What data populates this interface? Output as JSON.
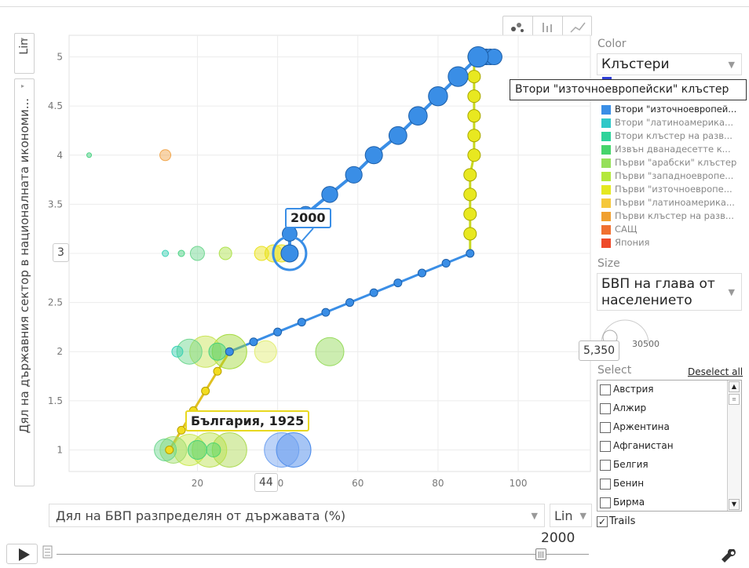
{
  "chart_data": {
    "type": "scatter",
    "x_axis": {
      "label": "Дял на БВП разпределян от държавата (%)",
      "scale": "Lin",
      "range": [
        -12,
        118
      ],
      "ticks": [
        20,
        40,
        60,
        80,
        100
      ],
      "highlight_value": "44"
    },
    "y_axis": {
      "label": "Дял на държавния сектор в националната икономи...",
      "scale": "Lin",
      "range": [
        0.78,
        5.22
      ],
      "ticks": [
        1,
        1.5,
        2,
        2.5,
        3,
        3.5,
        4,
        4.5,
        5
      ],
      "tick_labels": [
        "1",
        "1.5",
        "2",
        "2.5",
        "3",
        "3.5",
        "4",
        "4.5",
        "5"
      ],
      "highlight_value": "3"
    },
    "grid": true,
    "year": "2000",
    "series": [
      {
        "name": "Втори \"източноевропейски\" клъстер",
        "color": "#2f8ee5",
        "trail": [
          [
            28,
            2
          ],
          [
            34,
            2.1
          ],
          [
            40,
            2.2
          ],
          [
            46,
            2.3
          ],
          [
            52,
            2.4
          ],
          [
            58,
            2.5
          ],
          [
            64,
            2.6
          ],
          [
            70,
            2.7
          ],
          [
            76,
            2.8
          ],
          [
            82,
            2.9
          ],
          [
            88,
            3
          ],
          [
            88,
            3.2
          ],
          [
            88,
            3.4
          ],
          [
            88,
            3.6
          ],
          [
            88,
            3.8
          ],
          [
            89,
            4
          ],
          [
            89,
            4.2
          ],
          [
            89,
            4.4
          ],
          [
            89,
            4.6
          ],
          [
            89,
            4.8
          ],
          [
            89,
            5
          ],
          [
            91,
            5
          ],
          [
            92,
            5
          ],
          [
            93,
            5
          ],
          [
            94,
            5
          ]
        ],
        "trail2": [
          [
            43,
            3
          ],
          [
            43,
            3.2
          ],
          [
            47,
            3.4
          ],
          [
            53,
            3.6
          ],
          [
            59,
            3.8
          ],
          [
            64,
            4
          ],
          [
            70,
            4.2
          ],
          [
            75,
            4.4
          ],
          [
            80,
            4.6
          ],
          [
            85,
            4.8
          ],
          [
            90,
            5
          ]
        ],
        "current": [
          43,
          3
        ]
      },
      {
        "name": "Първи \"източноевропейски\" клъстер",
        "color": "#d8e020",
        "trail": [
          [
            13,
            1
          ],
          [
            16,
            1.2
          ],
          [
            19,
            1.4
          ],
          [
            22,
            1.6
          ],
          [
            25,
            1.8
          ],
          [
            28,
            2
          ]
        ]
      }
    ],
    "bubbles": [
      {
        "x": 44,
        "y": 1,
        "r": 22,
        "color": "#3a7fe8"
      },
      {
        "x": 41,
        "y": 1,
        "r": 22,
        "color": "#6a9ef0"
      },
      {
        "x": 28,
        "y": 1,
        "r": 22,
        "color": "#a8d84a"
      },
      {
        "x": 23,
        "y": 1,
        "r": 22,
        "color": "#b8e046"
      },
      {
        "x": 18,
        "y": 1,
        "r": 20,
        "color": "#c8e848"
      },
      {
        "x": 14,
        "y": 1,
        "r": 17,
        "color": "#9edc6a"
      },
      {
        "x": 12,
        "y": 1,
        "r": 14,
        "color": "#66d48a"
      },
      {
        "x": 20,
        "y": 1,
        "r": 12,
        "color": "#3ccf7a"
      },
      {
        "x": 24,
        "y": 1,
        "r": 9,
        "color": "#46d46a"
      },
      {
        "x": 28,
        "y": 2,
        "r": 22,
        "color": "#9ed832"
      },
      {
        "x": 22,
        "y": 2,
        "r": 20,
        "color": "#c6e24c"
      },
      {
        "x": 18,
        "y": 2,
        "r": 16,
        "color": "#66d48a"
      },
      {
        "x": 37,
        "y": 2,
        "r": 14,
        "color": "#e0ec6a"
      },
      {
        "x": 53,
        "y": 2,
        "r": 18,
        "color": "#8ed850"
      },
      {
        "x": 25,
        "y": 2,
        "r": 11,
        "color": "#3ccf7a"
      },
      {
        "x": 15,
        "y": 2,
        "r": 7,
        "color": "#2ecfb0"
      },
      {
        "x": 12,
        "y": 4,
        "r": 7,
        "color": "#f0a040"
      },
      {
        "x": -7,
        "y": 4,
        "r": 3,
        "color": "#3ccf7a"
      },
      {
        "x": 12,
        "y": 3,
        "r": 4,
        "color": "#2ecfb0"
      },
      {
        "x": 16,
        "y": 3,
        "r": 4,
        "color": "#3ccf7a"
      },
      {
        "x": 20,
        "y": 3,
        "r": 9,
        "color": "#66d48a"
      },
      {
        "x": 27,
        "y": 3,
        "r": 8,
        "color": "#a8e040"
      },
      {
        "x": 36,
        "y": 3,
        "r": 9,
        "color": "#e8e010"
      },
      {
        "x": 39,
        "y": 3,
        "r": 11,
        "color": "#e8e010"
      },
      {
        "x": 41,
        "y": 3,
        "r": 11,
        "color": "#e8e010"
      }
    ],
    "labels": [
      {
        "text": "2000",
        "at": [
          43,
          3
        ]
      },
      {
        "text": "България, 1925",
        "at": [
          13,
          1
        ]
      }
    ]
  },
  "view_buttons": [
    "bubble-view",
    "bar-view",
    "line-view"
  ],
  "y_scale_toggle": "Lin",
  "x_scale_toggle": "Lin",
  "color": {
    "label": "Color",
    "value": "Клъстери",
    "tooltip": "Втори \"източноевропейски\" клъстер",
    "legend": [
      {
        "name": "Втори \"източноевропей...",
        "color": "#3a8ee6"
      },
      {
        "name": "Втори \"латиноамерика...",
        "color": "#30c8c8"
      },
      {
        "name": "Втори клъстер на разв...",
        "color": "#2ed39a"
      },
      {
        "name": "Извън дванадесетте к...",
        "color": "#46d46a"
      },
      {
        "name": "Първи \"арабски\" клъстер",
        "color": "#96e05a"
      },
      {
        "name": "Първи \"западноевропе...",
        "color": "#b4e83c"
      },
      {
        "name": "Първи \"източноевропе...",
        "color": "#e4e820"
      },
      {
        "name": "Първи \"латиноамерика...",
        "color": "#f5c83c"
      },
      {
        "name": "Първи клъстер на разв...",
        "color": "#f0a030"
      },
      {
        "name": "САЩ",
        "color": "#f07030"
      },
      {
        "name": "Япония",
        "color": "#ee4a2a"
      }
    ]
  },
  "size": {
    "label": "Size",
    "value": "БВП на глава от населението",
    "value_line1": "БВП на глава от",
    "value_line2": "населението",
    "max": "30500",
    "current": "5,350"
  },
  "select": {
    "label": "Select",
    "deselect": "Deselect all",
    "countries": [
      "Австрия",
      "Алжир",
      "Аржентина",
      "Афганистан",
      "Белгия",
      "Бенин",
      "Бирма"
    ]
  },
  "trails_label": "Trails",
  "time": {
    "year": "2000",
    "progress": 0.91
  }
}
